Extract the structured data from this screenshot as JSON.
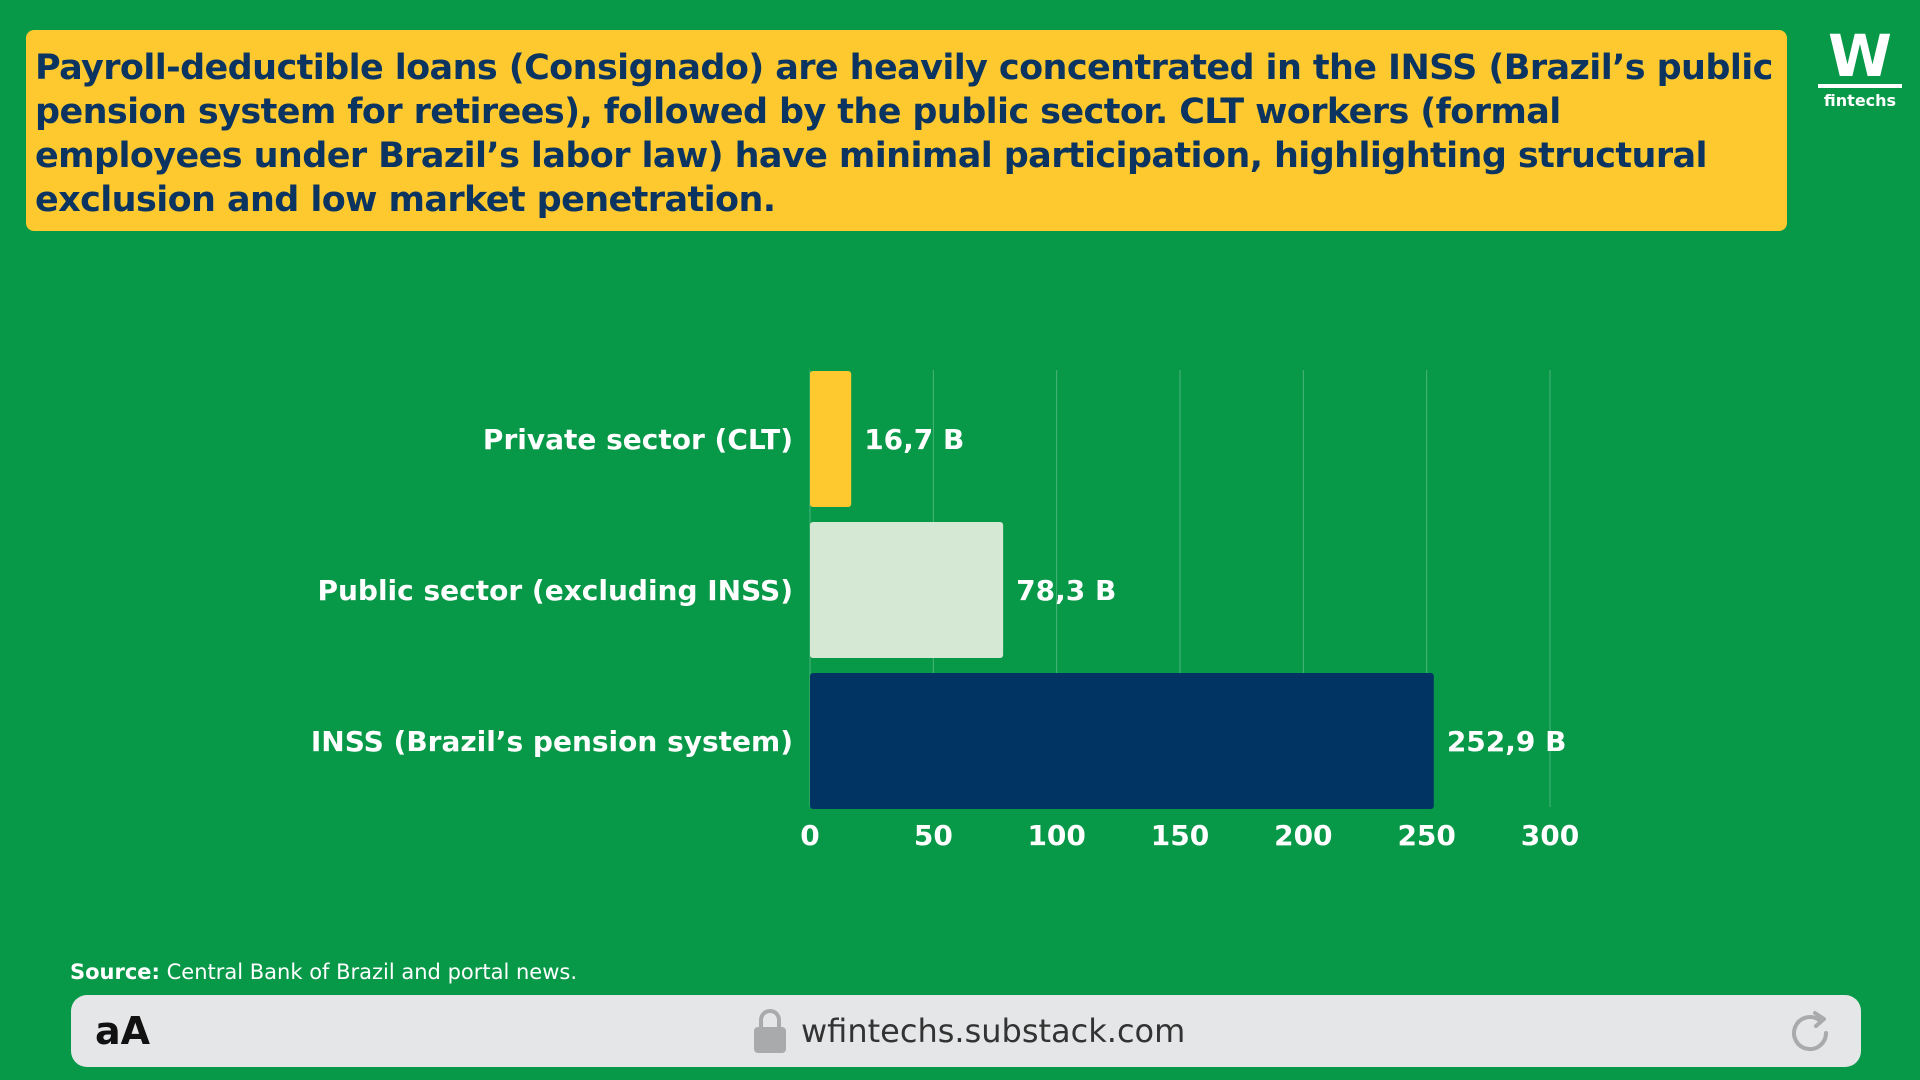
{
  "headline": "Payroll-deductible loans (Consignado) are heavily concentrated in the INSS (Brazil’s public pension system for retirees), followed by the public sector. CLT workers (formal employees under Brazil’s labor law) have minimal participation, highlighting structural exclusion and low market penetration.",
  "logo": {
    "letter": "W",
    "text": "fintechs"
  },
  "chart_data": {
    "type": "bar",
    "orientation": "horizontal",
    "categories": [
      "Private sector (CLT)",
      "Public sector (excluding INSS)",
      "INSS (Brazil’s pension system)"
    ],
    "values": [
      16.7,
      78.3,
      252.9
    ],
    "value_labels": [
      "16,7 B",
      "78,3 B",
      "252,9 B"
    ],
    "bar_colors": [
      "#FEC92F",
      "#D5E8D3",
      "#013462"
    ],
    "xlim": [
      0,
      300
    ],
    "xticks": [
      0,
      50,
      100,
      150,
      200,
      250,
      300
    ],
    "grid": "vertical",
    "title": "",
    "xlabel": "",
    "ylabel": ""
  },
  "source": {
    "label": "Source:",
    "text": " Central Bank of Brazil and portal news."
  },
  "browser": {
    "text_size_label": "aA",
    "url": "wfintechs.substack.com",
    "icons": {
      "lock": "lock-icon",
      "reload": "reload-icon"
    }
  }
}
